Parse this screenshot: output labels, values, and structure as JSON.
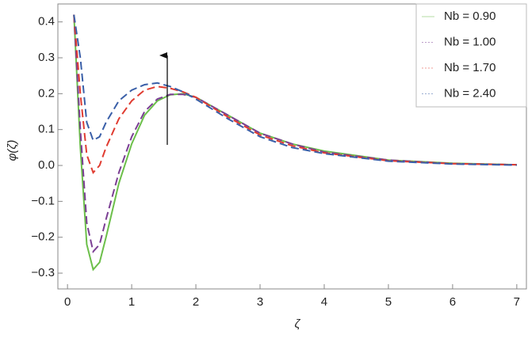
{
  "chart_data": {
    "type": "line",
    "xlabel": "ζ",
    "ylabel": "φ(ζ)",
    "x": [
      0.1,
      0.2,
      0.3,
      0.4,
      0.5,
      0.6,
      0.8,
      1.0,
      1.2,
      1.4,
      1.6,
      1.8,
      2.0,
      2.5,
      3,
      3.5,
      4,
      5,
      6,
      7
    ],
    "series": [
      {
        "name": "Nb = 0.90",
        "color": "#6cbf4a",
        "dash": false,
        "values": [
          0.42,
          0.05,
          -0.22,
          -0.29,
          -0.27,
          -0.2,
          -0.05,
          0.06,
          0.14,
          0.18,
          0.197,
          0.2,
          0.19,
          0.14,
          0.09,
          0.06,
          0.04,
          0.015,
          0.006,
          0.002
        ]
      },
      {
        "name": "Nb = 1.00",
        "color": "#7b3f94",
        "dash": true,
        "values": [
          0.42,
          0.1,
          -0.16,
          -0.24,
          -0.22,
          -0.15,
          -0.02,
          0.08,
          0.15,
          0.185,
          0.198,
          0.198,
          0.19,
          0.14,
          0.09,
          0.06,
          0.037,
          0.015,
          0.005,
          0.002
        ]
      },
      {
        "name": "Nb = 1.70",
        "color": "#e03c31",
        "dash": true,
        "values": [
          0.42,
          0.2,
          0.03,
          -0.02,
          0.0,
          0.05,
          0.13,
          0.18,
          0.21,
          0.22,
          0.215,
          0.205,
          0.19,
          0.135,
          0.085,
          0.055,
          0.035,
          0.013,
          0.005,
          0.002
        ]
      },
      {
        "name": "Nb = 2.40",
        "color": "#3a5fa8",
        "dash": true,
        "values": [
          0.42,
          0.3,
          0.12,
          0.07,
          0.08,
          0.12,
          0.18,
          0.21,
          0.225,
          0.23,
          0.22,
          0.205,
          0.185,
          0.13,
          0.08,
          0.05,
          0.033,
          0.012,
          0.004,
          0.001
        ]
      }
    ],
    "xlim": [
      -0.15,
      7.15
    ],
    "ylim": [
      -0.344,
      0.45
    ],
    "xticks": [
      0,
      1,
      2,
      3,
      4,
      5,
      6,
      7
    ],
    "yticks": [
      {
        "value": -0.3,
        "label": "−0.3"
      },
      {
        "value": -0.2,
        "label": "−0.2"
      },
      {
        "value": -0.1,
        "label": "−0.1"
      },
      {
        "value": 0,
        "label": "0.0"
      },
      0.1,
      0.2,
      0.3,
      0.4
    ],
    "legend": "top-right"
  }
}
